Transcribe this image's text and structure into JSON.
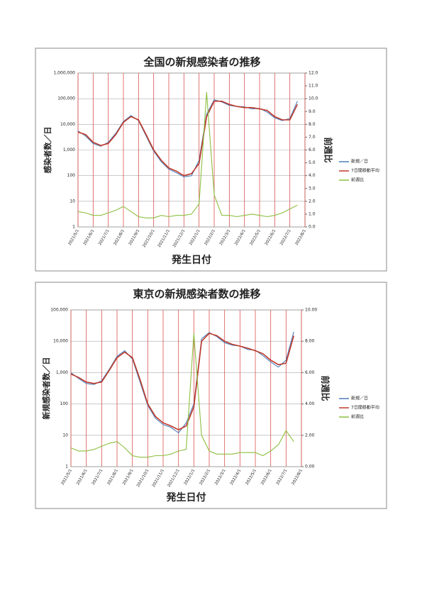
{
  "chart_data": [
    {
      "type": "line",
      "title": "全国の新規感染者の推移",
      "y_label": "感染者数／日",
      "y2_label": "前週比",
      "x_label": "発生日付",
      "categories": [
        "2021/5/1",
        null,
        "2021/6/1",
        null,
        "2021/7/1",
        null,
        "2021/8/1",
        null,
        "2021/9/1",
        null,
        "2021/10/1",
        null,
        "2021/11/1",
        null,
        "2021/12/1",
        null,
        "2022/1/1",
        null,
        "2022/2/1",
        null,
        "2022/3/1",
        null,
        "2022/4/1",
        null,
        "2022/5/1",
        null,
        "2022/6/1",
        null,
        "2022/7/1",
        null,
        "2022/8/1"
      ],
      "log_y": true,
      "grid": true,
      "legend": "right",
      "ylim": [
        1,
        1000000
      ],
      "yticks": [
        1,
        10,
        100,
        {
          "value": 1000,
          "label": "1,000"
        },
        {
          "value": 10000,
          "label": "10,000"
        },
        {
          "value": 100000,
          "label": "100,000"
        },
        {
          "value": 1000000,
          "label": "1,000,000"
        }
      ],
      "y2lim": [
        0,
        12
      ],
      "y2ticks": [
        {
          "value": 0,
          "label": "0.0"
        },
        {
          "value": 1,
          "label": "1.0"
        },
        {
          "value": 2,
          "label": "2.0"
        },
        {
          "value": 3,
          "label": "3.0"
        },
        {
          "value": 4,
          "label": "4.0"
        },
        {
          "value": 5,
          "label": "5.0"
        },
        {
          "value": 6,
          "label": "6.0"
        },
        {
          "value": 7,
          "label": "7.0"
        },
        {
          "value": 8,
          "label": "8.0"
        },
        {
          "value": 9,
          "label": "9.0"
        },
        {
          "value": 10,
          "label": "10.0"
        },
        {
          "value": 11,
          "label": "11.0"
        },
        {
          "value": 12,
          "label": "12.0"
        }
      ],
      "series": [
        {
          "name": "新規／日",
          "color": "#4a7ebb",
          "values": [
            5500,
            3500,
            1800,
            1400,
            2000,
            4500,
            13000,
            22000,
            14000,
            3500,
            900,
            350,
            180,
            130,
            90,
            100,
            400,
            25000,
            90000,
            75000,
            55000,
            50000,
            48000,
            40000,
            42000,
            30000,
            18000,
            14000,
            17000,
            80000,
            null
          ]
        },
        {
          "name": "7日間移動平均",
          "color": "#c0392b",
          "values": [
            5000,
            4000,
            2000,
            1500,
            1800,
            4000,
            12000,
            20000,
            15000,
            4000,
            1000,
            400,
            200,
            150,
            100,
            120,
            300,
            20000,
            80000,
            80000,
            60000,
            50000,
            45000,
            45000,
            40000,
            35000,
            20000,
            15000,
            15000,
            60000,
            null
          ]
        },
        {
          "name": "前週比",
          "color": "#8cbf3f",
          "axis": "y2",
          "values": [
            1.2,
            1.1,
            0.9,
            0.9,
            1.1,
            1.3,
            1.6,
            1.2,
            0.8,
            0.7,
            0.7,
            0.9,
            0.8,
            0.9,
            0.9,
            1.0,
            1.8,
            10.5,
            2.5,
            0.9,
            0.9,
            0.8,
            0.9,
            1.0,
            0.9,
            0.8,
            0.9,
            1.1,
            1.4,
            1.7,
            null
          ]
        }
      ]
    },
    {
      "type": "line",
      "title": "東京の新規感染者数の推移",
      "y_label": "新規感染者数／日",
      "y2_label": "前週比",
      "x_label": "発生日付",
      "categories": [
        "2021/5/1",
        null,
        "2021/6/1",
        null,
        "2021/7/1",
        null,
        "2021/8/1",
        null,
        "2021/9/1",
        null,
        "2021/10/1",
        null,
        "2021/11/1",
        null,
        "2021/12/1",
        null,
        "2022/1/1",
        null,
        "2022/2/1",
        null,
        "2022/3/1",
        null,
        "2022/4/1",
        null,
        "2022/5/1",
        null,
        "2022/6/1",
        null,
        "2022/7/1",
        null,
        "2022/8/1"
      ],
      "log_y": true,
      "grid": true,
      "legend": "right",
      "ylim": [
        1,
        100000
      ],
      "yticks": [
        1,
        10,
        100,
        {
          "value": 1000,
          "label": "1,000"
        },
        {
          "value": 10000,
          "label": "10,000"
        },
        {
          "value": 100000,
          "label": "100,000"
        }
      ],
      "y2lim": [
        0,
        10
      ],
      "y2ticks": [
        {
          "value": 0,
          "label": "0.00"
        },
        {
          "value": 2,
          "label": "2.00"
        },
        {
          "value": 4,
          "label": "4.00"
        },
        {
          "value": 6,
          "label": "6.00"
        },
        {
          "value": 8,
          "label": "8.00"
        },
        {
          "value": 10,
          "label": "10.00"
        }
      ],
      "series": [
        {
          "name": "新規／日",
          "color": "#4a7ebb",
          "values": [
            1000,
            650,
            450,
            420,
            550,
            1300,
            3300,
            5000,
            2700,
            500,
            90,
            35,
            22,
            18,
            12,
            25,
            100,
            12000,
            19000,
            14000,
            9000,
            7500,
            7000,
            5500,
            5200,
            3500,
            2200,
            1500,
            2500,
            20000,
            null
          ]
        },
        {
          "name": "7日間移動平均",
          "color": "#c0392b",
          "values": [
            900,
            700,
            500,
            450,
            500,
            1200,
            3000,
            4500,
            3000,
            600,
            100,
            40,
            25,
            20,
            15,
            20,
            80,
            10000,
            18000,
            15000,
            10000,
            8000,
            7000,
            6000,
            5000,
            4000,
            2500,
            1800,
            2000,
            15000,
            null
          ]
        },
        {
          "name": "前週比",
          "color": "#8cbf3f",
          "axis": "y2",
          "values": [
            1.2,
            1.0,
            1.0,
            1.1,
            1.3,
            1.5,
            1.6,
            1.2,
            0.7,
            0.6,
            0.6,
            0.7,
            0.7,
            0.8,
            1.0,
            1.1,
            8.5,
            2.0,
            1.0,
            0.8,
            0.8,
            0.8,
            0.9,
            0.9,
            0.9,
            0.7,
            1.0,
            1.4,
            2.3,
            1.6,
            null
          ]
        }
      ]
    }
  ]
}
